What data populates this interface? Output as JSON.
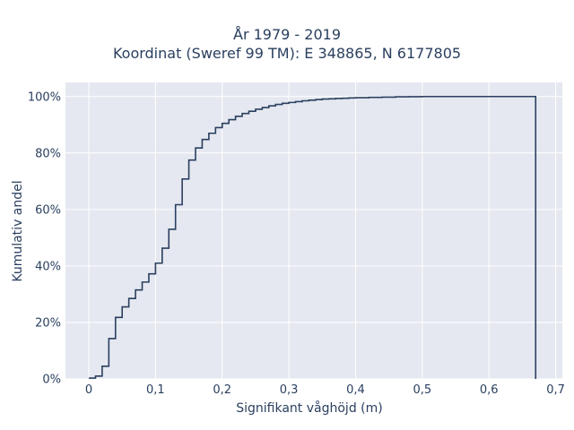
{
  "chart_data": {
    "type": "line",
    "title_line1": "År 1979 - 2019",
    "title_line2": "Koordinat (Sweref 99 TM): E 348865, N 6177805",
    "xlabel": "Signifikant våghöjd (m)",
    "ylabel": "Kumulativ andel",
    "xlim": [
      -0.035,
      0.71
    ],
    "ylim": [
      0,
      1.05
    ],
    "grid": true,
    "background": "#e5e8f0",
    "line_color": "#2a3f5f",
    "x_ticks": [
      0,
      0.1,
      0.2,
      0.3,
      0.4,
      0.5,
      0.6,
      0.7
    ],
    "x_tick_labels": [
      "0",
      "0,1",
      "0,2",
      "0,3",
      "0,4",
      "0,5",
      "0,6",
      "0,7"
    ],
    "y_ticks": [
      0,
      0.2,
      0.4,
      0.6,
      0.8,
      1.0
    ],
    "y_tick_labels": [
      "0%",
      "20%",
      "40%",
      "60%",
      "80%",
      "100%"
    ],
    "series": [
      {
        "step": "post",
        "x": [
          0,
          0.01,
          0.02,
          0.03,
          0.04,
          0.05,
          0.06,
          0.07,
          0.08,
          0.09,
          0.1,
          0.11,
          0.12,
          0.13,
          0.14,
          0.15,
          0.16,
          0.17,
          0.18,
          0.19,
          0.2,
          0.21,
          0.22,
          0.23,
          0.24,
          0.25,
          0.26,
          0.27,
          0.28,
          0.29,
          0.3,
          0.31,
          0.32,
          0.33,
          0.34,
          0.35,
          0.36,
          0.37,
          0.38,
          0.39,
          0.4,
          0.42,
          0.44,
          0.46,
          0.48,
          0.5,
          0.67
        ],
        "y": [
          0.003,
          0.01,
          0.045,
          0.143,
          0.218,
          0.255,
          0.285,
          0.315,
          0.343,
          0.372,
          0.41,
          0.463,
          0.53,
          0.617,
          0.708,
          0.775,
          0.818,
          0.848,
          0.87,
          0.89,
          0.905,
          0.918,
          0.93,
          0.94,
          0.948,
          0.955,
          0.961,
          0.967,
          0.972,
          0.976,
          0.979,
          0.982,
          0.985,
          0.987,
          0.989,
          0.991,
          0.992,
          0.993,
          0.994,
          0.995,
          0.996,
          0.997,
          0.998,
          0.999,
          0.9995,
          1.0,
          0
        ]
      }
    ]
  }
}
